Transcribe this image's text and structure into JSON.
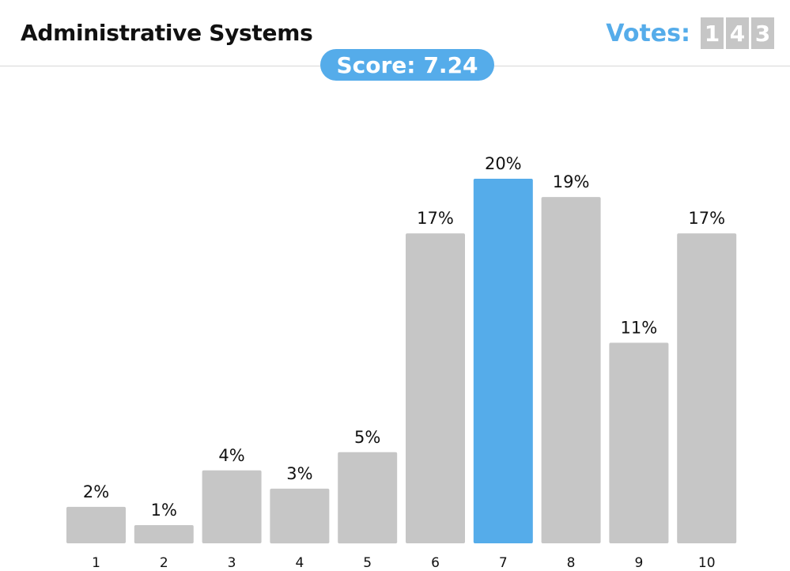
{
  "header": {
    "title": "Administrative Systems",
    "votes_label": "Votes:",
    "votes_digits": [
      "1",
      "4",
      "3"
    ]
  },
  "score": {
    "label": "Score:",
    "value": "7.24"
  },
  "colors": {
    "accent": "#55acea",
    "bar": "#c6c6c6",
    "highlight": "#55acea"
  },
  "chart_data": {
    "type": "bar",
    "categories": [
      "1",
      "2",
      "3",
      "4",
      "5",
      "6",
      "7",
      "8",
      "9",
      "10"
    ],
    "values": [
      2,
      1,
      4,
      3,
      5,
      17,
      20,
      19,
      11,
      17
    ],
    "value_labels": [
      "2%",
      "1%",
      "4%",
      "3%",
      "5%",
      "17%",
      "20%",
      "19%",
      "11%",
      "17%"
    ],
    "highlight_category": "7",
    "ylim": [
      0,
      20
    ],
    "grid": false
  }
}
